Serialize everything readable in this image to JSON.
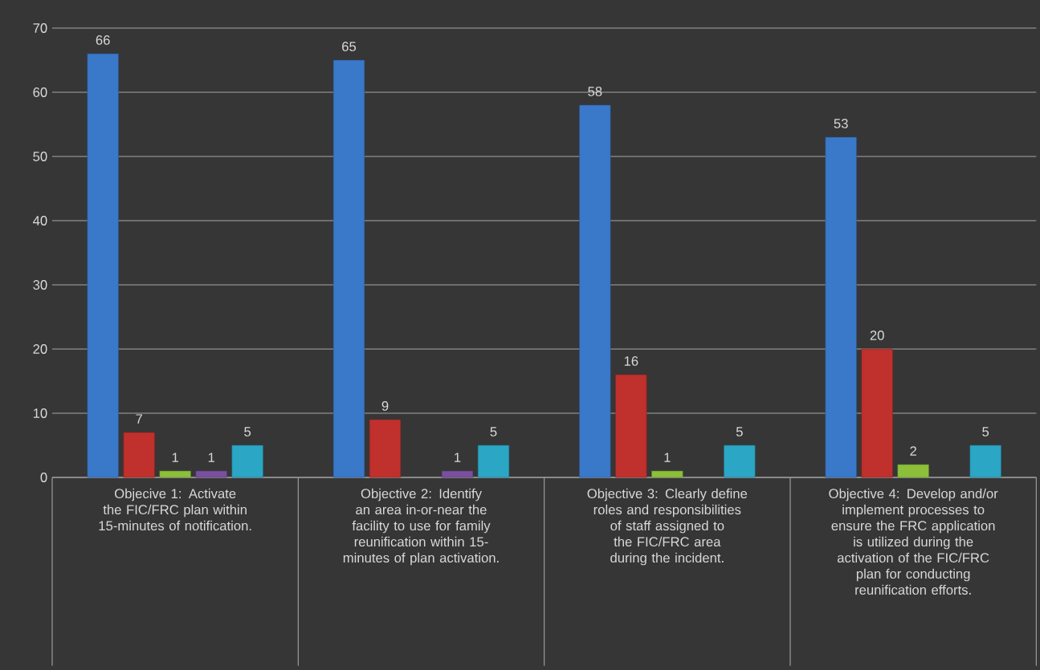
{
  "chart_data": {
    "type": "bar",
    "categories": [
      "Objecive 1: Activate the FIC/FRC plan within 15-minutes of notification.",
      "Objective 2: Identify an area in-or-near the facility to use for family reunification within 15-minutes of plan activation.",
      "Objective 3: Clearly define roles and responsibilities of staff assigned to the FIC/FRC area during the incident.",
      "Objective 4: Develop and/or implement processes to ensure the FRC application is utilized during the activation of the FIC/FRC plan for conducting reunification efforts."
    ],
    "series": [
      {
        "color": "#3a78c9",
        "values": [
          66,
          65,
          58,
          53
        ]
      },
      {
        "color": "#c0302c",
        "values": [
          7,
          9,
          16,
          20
        ]
      },
      {
        "color": "#8cbf3a",
        "values": [
          1,
          null,
          1,
          2
        ]
      },
      {
        "color": "#7a4fa0",
        "values": [
          1,
          1,
          null,
          null
        ]
      },
      {
        "color": "#2ba6c4",
        "values": [
          5,
          5,
          5,
          5
        ]
      }
    ],
    "ylim": [
      0,
      70
    ],
    "yticks": [
      0,
      10,
      20,
      30,
      40,
      50,
      60,
      70
    ],
    "grid": "y",
    "data_labels": true
  }
}
